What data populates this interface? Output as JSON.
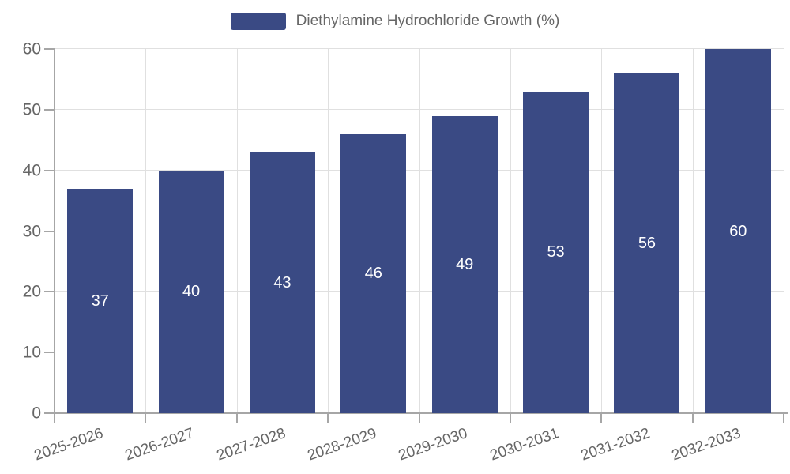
{
  "chart_data": {
    "type": "bar",
    "title": "",
    "xlabel": "",
    "ylabel": "",
    "categories": [
      "2025-2026",
      "2026-2027",
      "2027-2028",
      "2028-2029",
      "2029-2030",
      "2030-2031",
      "2031-2032",
      "2032-2033"
    ],
    "series": [
      {
        "name": "Diethylamine Hydrochloride Growth (%)",
        "values": [
          37,
          40,
          43,
          46,
          49,
          53,
          56,
          60
        ],
        "color": "#3A4A84"
      }
    ],
    "ylim": [
      0,
      60
    ],
    "yticks": [
      0,
      10,
      20,
      30,
      40,
      50,
      60
    ],
    "grid": true,
    "legend_position": "top-center",
    "value_labels": {
      "position": "inside-center",
      "color": "#FFFFFF"
    },
    "x_tick_rotation_deg": 19
  },
  "colors": {
    "background": "#FFFFFF",
    "bar": "#3A4A84",
    "axis_line": "#A6A6A6",
    "grid_line": "#E0E0E0",
    "tick_text": "#666666",
    "legend_text": "#666666",
    "value_label_text": "#FFFFFF"
  }
}
